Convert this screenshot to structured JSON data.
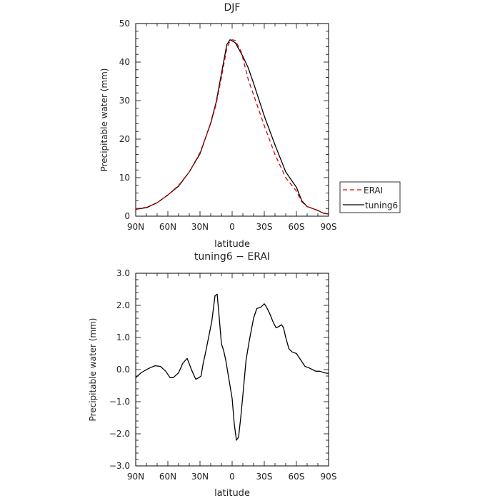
{
  "chart_data": [
    {
      "type": "line",
      "title": "DJF",
      "xlabel": "latitude",
      "ylabel": "Precipitable water (mm)",
      "xlim": [
        -90,
        90
      ],
      "ylim": [
        0,
        50
      ],
      "x_ticks": [
        -90,
        -60,
        -30,
        0,
        30,
        60,
        90
      ],
      "x_tick_labels": [
        "90N",
        "60N",
        "30N",
        "0",
        "30S",
        "60S",
        "90S"
      ],
      "y_ticks": [
        0,
        10,
        20,
        30,
        40,
        50
      ],
      "y_tick_labels": [
        "0",
        "10",
        "20",
        "30",
        "40",
        "50"
      ],
      "legend_position": "right",
      "series": [
        {
          "name": "ERAI",
          "color": "#dd0000",
          "style": "dashed",
          "x": [
            -90,
            -80,
            -70,
            -60,
            -50,
            -40,
            -30,
            -20,
            -15,
            -10,
            -5,
            -2,
            0,
            3,
            5,
            8,
            10,
            15,
            20,
            30,
            40,
            50,
            60,
            65,
            70,
            75,
            80,
            85,
            90
          ],
          "y": [
            1.9,
            2.3,
            3.5,
            5.5,
            8.0,
            11.5,
            16.5,
            24.0,
            29.0,
            36.0,
            43.5,
            45.5,
            45.8,
            45.6,
            44.5,
            43.0,
            41.0,
            35.5,
            31.5,
            23.5,
            16.0,
            10.0,
            6.5,
            3.7,
            2.5,
            2.0,
            1.4,
            0.8,
            0.5
          ]
        },
        {
          "name": "tuning6",
          "color": "#000000",
          "style": "solid",
          "x": [
            -90,
            -80,
            -70,
            -60,
            -50,
            -40,
            -30,
            -20,
            -15,
            -10,
            -5,
            -2,
            0,
            3,
            5,
            8,
            10,
            15,
            20,
            30,
            40,
            50,
            60,
            65,
            70,
            75,
            80,
            85,
            90
          ],
          "y": [
            1.8,
            2.2,
            3.5,
            5.5,
            7.8,
            11.5,
            16.2,
            24.2,
            29.5,
            37.0,
            44.5,
            45.8,
            45.5,
            45.0,
            44.0,
            42.5,
            41.5,
            38.5,
            34.5,
            26.0,
            18.5,
            11.5,
            7.5,
            4.0,
            2.5,
            2.0,
            1.5,
            0.8,
            0.6
          ]
        }
      ]
    },
    {
      "type": "line",
      "title": "tuning6 − ERAI",
      "xlabel": "latitude",
      "ylabel": "Precipitable water (mm)",
      "xlim": [
        -90,
        90
      ],
      "ylim": [
        -3,
        3
      ],
      "x_ticks": [
        -90,
        -60,
        -30,
        0,
        30,
        60,
        90
      ],
      "x_tick_labels": [
        "90N",
        "60N",
        "30N",
        "0",
        "30S",
        "60S",
        "90S"
      ],
      "y_ticks": [
        -3,
        -2,
        -1,
        0,
        1,
        2,
        3
      ],
      "y_tick_labels": [
        "−3.0",
        "−2.0",
        "−1.0",
        "0.0",
        "1.0",
        "2.0",
        "3.0"
      ],
      "series": [
        {
          "name": "",
          "color": "#000000",
          "style": "solid",
          "x": [
            -90,
            -85,
            -80,
            -77,
            -72,
            -67,
            -62,
            -58,
            -55,
            -50,
            -46,
            -42,
            -38,
            -34,
            -31,
            -29,
            -27,
            -25,
            -22,
            -19,
            -16,
            -14,
            -12,
            -10,
            -8,
            -6,
            -3,
            0,
            2,
            4,
            6,
            8,
            10,
            13,
            16,
            20,
            23,
            27,
            30,
            32,
            35,
            38,
            41,
            44,
            46,
            48,
            50,
            53,
            56,
            60,
            64,
            68,
            72,
            75,
            78,
            82,
            86,
            90
          ],
          "y": [
            -0.25,
            -0.1,
            0.0,
            0.05,
            0.12,
            0.1,
            -0.05,
            -0.25,
            -0.25,
            -0.1,
            0.2,
            0.35,
            0.0,
            -0.3,
            -0.25,
            -0.2,
            0.2,
            0.5,
            1.0,
            1.5,
            2.3,
            2.35,
            1.6,
            0.8,
            0.6,
            0.3,
            -0.3,
            -0.9,
            -1.7,
            -2.2,
            -2.1,
            -1.5,
            -0.8,
            0.3,
            0.9,
            1.6,
            1.9,
            1.95,
            2.05,
            1.95,
            1.75,
            1.5,
            1.3,
            1.35,
            1.4,
            1.3,
            1.0,
            0.65,
            0.55,
            0.5,
            0.3,
            0.1,
            0.05,
            0.0,
            -0.05,
            -0.05,
            -0.1,
            -0.12
          ]
        }
      ]
    }
  ]
}
